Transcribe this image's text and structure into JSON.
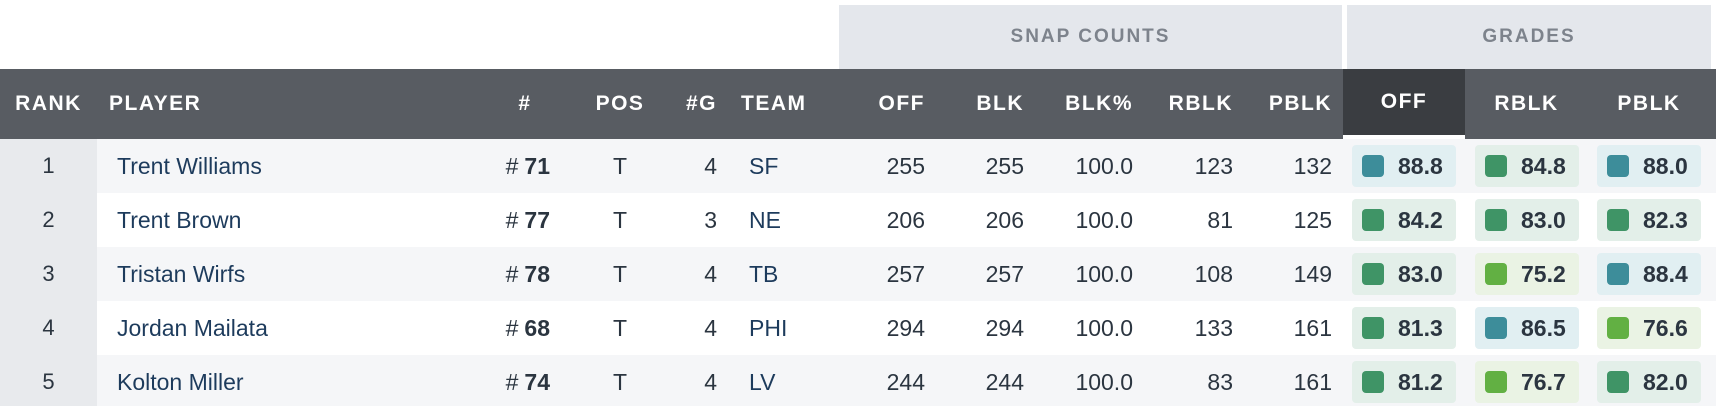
{
  "groups": {
    "snap_counts": "SNAP COUNTS",
    "grades": "GRADES"
  },
  "headers": {
    "rank": "RANK",
    "player": "PLAYER",
    "number": "#",
    "pos": "POS",
    "games": "#G",
    "team": "TEAM",
    "off": "OFF",
    "blk": "BLK",
    "blk_pct": "BLK%",
    "rblk": "RBLK",
    "pblk": "PBLK",
    "grade_off": "OFF",
    "grade_rblk": "RBLK",
    "grade_pblk": "PBLK"
  },
  "colors": {
    "teal": "#3d8d9a",
    "teal_bg": "#e1eff2",
    "green": "#3f9466",
    "green_bg": "#e3efe9",
    "lime": "#62b043",
    "lime_bg": "#eaf3e4"
  },
  "rows": [
    {
      "rank": "1",
      "player": "Trent Williams",
      "hash": "#",
      "number": "71",
      "pos": "T",
      "games": "4",
      "team": "SF",
      "off": "255",
      "blk": "255",
      "blk_pct": "100.0",
      "rblk": "123",
      "pblk": "132",
      "grade_off": "88.8",
      "grade_off_color": "teal",
      "grade_rblk": "84.8",
      "grade_rblk_color": "green",
      "grade_pblk": "88.0",
      "grade_pblk_color": "teal"
    },
    {
      "rank": "2",
      "player": "Trent Brown",
      "hash": "#",
      "number": "77",
      "pos": "T",
      "games": "3",
      "team": "NE",
      "off": "206",
      "blk": "206",
      "blk_pct": "100.0",
      "rblk": "81",
      "pblk": "125",
      "grade_off": "84.2",
      "grade_off_color": "green",
      "grade_rblk": "83.0",
      "grade_rblk_color": "green",
      "grade_pblk": "82.3",
      "grade_pblk_color": "green"
    },
    {
      "rank": "3",
      "player": "Tristan Wirfs",
      "hash": "#",
      "number": "78",
      "pos": "T",
      "games": "4",
      "team": "TB",
      "off": "257",
      "blk": "257",
      "blk_pct": "100.0",
      "rblk": "108",
      "pblk": "149",
      "grade_off": "83.0",
      "grade_off_color": "green",
      "grade_rblk": "75.2",
      "grade_rblk_color": "lime",
      "grade_pblk": "88.4",
      "grade_pblk_color": "teal"
    },
    {
      "rank": "4",
      "player": "Jordan Mailata",
      "hash": "#",
      "number": "68",
      "pos": "T",
      "games": "4",
      "team": "PHI",
      "off": "294",
      "blk": "294",
      "blk_pct": "100.0",
      "rblk": "133",
      "pblk": "161",
      "grade_off": "81.3",
      "grade_off_color": "green",
      "grade_rblk": "86.5",
      "grade_rblk_color": "teal",
      "grade_pblk": "76.6",
      "grade_pblk_color": "lime"
    },
    {
      "rank": "5",
      "player": "Kolton Miller",
      "hash": "#",
      "number": "74",
      "pos": "T",
      "games": "4",
      "team": "LV",
      "off": "244",
      "blk": "244",
      "blk_pct": "100.0",
      "rblk": "83",
      "pblk": "161",
      "grade_off": "81.2",
      "grade_off_color": "green",
      "grade_rblk": "76.7",
      "grade_rblk_color": "lime",
      "grade_pblk": "82.0",
      "grade_pblk_color": "green"
    }
  ]
}
